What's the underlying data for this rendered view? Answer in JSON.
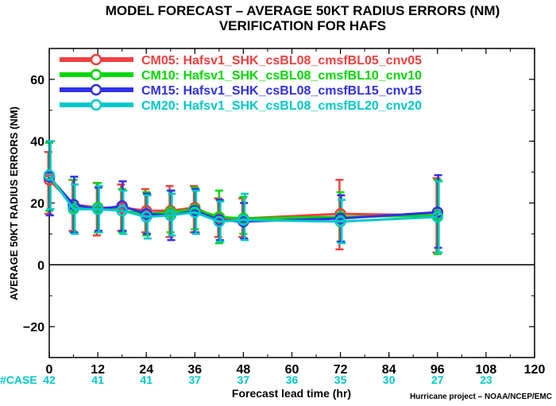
{
  "chart_data": {
    "type": "line",
    "title": "MODEL FORECAST – AVERAGE 50KT RADIUS ERRORS (NM)",
    "subtitle": "VERIFICATION FOR HAFS",
    "xlabel": "Forecast lead time (hr)",
    "ylabel": "AVERAGE 50KT RADIUS ERRORS (NM)",
    "credit": "Hurricane project – NOAA/NCEP/EMC",
    "xlim": [
      0,
      120
    ],
    "ylim": [
      -30,
      70
    ],
    "x_ticks": [
      "0",
      "12",
      "24",
      "36",
      "48",
      "60",
      "72",
      "84",
      "96",
      "108",
      "120"
    ],
    "y_ticks": [
      "−20",
      "0",
      "20",
      "40",
      "60"
    ],
    "grid": false,
    "zero_line": true,
    "legend_position": "top-left",
    "cases_label": "#CASE",
    "cases": [
      {
        "x": 0,
        "n": "42"
      },
      {
        "x": 12,
        "n": "41"
      },
      {
        "x": 24,
        "n": "41"
      },
      {
        "x": 36,
        "n": "37"
      },
      {
        "x": 48,
        "n": "37"
      },
      {
        "x": 60,
        "n": "36"
      },
      {
        "x": 72,
        "n": "35"
      },
      {
        "x": 84,
        "n": "30"
      },
      {
        "x": 96,
        "n": "27"
      },
      {
        "x": 108,
        "n": "23"
      }
    ],
    "cases_color": "#00c8c8",
    "x": [
      0,
      6,
      12,
      18,
      24,
      30,
      36,
      42,
      48,
      72,
      96
    ],
    "series": [
      {
        "name": "CM05: Hafsv1_SHK_csBL08_cmsfBL05_cnv05",
        "color": "#f04040",
        "values": [
          27.5,
          19.5,
          18.5,
          18.5,
          17.5,
          17.5,
          18.5,
          15.0,
          15.0,
          16.5,
          16.0
        ],
        "err_low": [
          16.5,
          11.0,
          9.5,
          11.0,
          10.5,
          9.0,
          10.5,
          9.0,
          9.0,
          5.0,
          4.0
        ],
        "err_high": [
          36.5,
          27.5,
          26.5,
          26.0,
          24.5,
          25.5,
          25.5,
          21.5,
          21.5,
          27.5,
          28.0
        ]
      },
      {
        "name": "CM10: Hafsv1_SHK_csBL08_cmsfBL10_cnv10",
        "color": "#00d800",
        "values": [
          28.5,
          18.5,
          18.5,
          17.5,
          16.5,
          17.0,
          18.0,
          15.5,
          15.0,
          15.5,
          16.0
        ],
        "err_low": [
          17.5,
          10.5,
          10.5,
          10.5,
          9.5,
          10.5,
          11.5,
          7.0,
          10.0,
          7.5,
          3.5
        ],
        "err_high": [
          39.5,
          27.5,
          26.5,
          24.5,
          23.5,
          24.0,
          25.0,
          24.0,
          22.0,
          23.5,
          27.5
        ]
      },
      {
        "name": "CM15: Hafsv1_SHK_csBL08_cmsfBL15_cnv15",
        "color": "#3030e8",
        "values": [
          28.5,
          19.5,
          18.0,
          19.0,
          16.5,
          16.0,
          17.5,
          14.5,
          14.0,
          15.0,
          17.0
        ],
        "err_low": [
          16.0,
          10.5,
          11.0,
          11.0,
          10.0,
          8.0,
          10.5,
          8.0,
          8.5,
          7.5,
          5.5
        ],
        "err_high": [
          40.0,
          28.5,
          25.0,
          27.0,
          23.0,
          24.0,
          24.5,
          21.0,
          20.0,
          22.5,
          29.0
        ]
      },
      {
        "name": "CM20: Hafsv1_SHK_csBL08_cmsfBL20_cnv20",
        "color": "#00c8c8",
        "values": [
          29.0,
          18.0,
          18.0,
          17.5,
          15.5,
          16.0,
          17.0,
          14.0,
          14.5,
          14.0,
          15.5
        ],
        "err_low": [
          18.0,
          10.0,
          10.5,
          10.0,
          8.5,
          9.5,
          10.0,
          7.5,
          8.0,
          7.0,
          4.0
        ],
        "err_high": [
          40.0,
          26.0,
          25.5,
          24.0,
          22.5,
          23.0,
          24.0,
          20.5,
          23.0,
          21.0,
          27.0
        ]
      }
    ]
  }
}
